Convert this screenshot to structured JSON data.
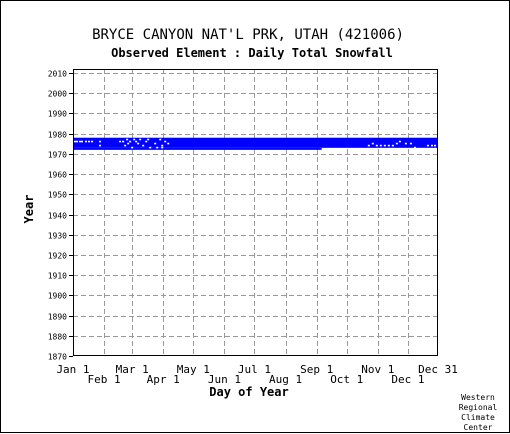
{
  "chart_data": {
    "type": "heatmap",
    "title": "BRYCE CANYON NAT'L PRK, UTAH   (421006)",
    "subtitle": "Observed Element : Daily Total Snowfall",
    "xlabel": "Day of Year",
    "ylabel": "Year",
    "credit": [
      "Western",
      "Regional",
      "Climate",
      "Center"
    ],
    "x_domain": [
      1,
      365
    ],
    "y_domain": [
      1870,
      2012
    ],
    "grid": true,
    "top_tick_labels": [
      {
        "day": 1,
        "label": "Jan 1"
      },
      {
        "day": 60,
        "label": "Mar 1"
      },
      {
        "day": 121,
        "label": "May 1"
      },
      {
        "day": 182,
        "label": "Jul 1"
      },
      {
        "day": 244,
        "label": "Sep 1"
      },
      {
        "day": 305,
        "label": "Nov 1"
      },
      {
        "day": 365,
        "label": "Dec 31"
      }
    ],
    "bottom_tick_labels": [
      {
        "day": 32,
        "label": "Feb 1"
      },
      {
        "day": 91,
        "label": "Apr 1"
      },
      {
        "day": 152,
        "label": "Jun 1"
      },
      {
        "day": 213,
        "label": "Aug 1"
      },
      {
        "day": 274,
        "label": "Oct 1"
      },
      {
        "day": 335,
        "label": "Dec 1"
      }
    ],
    "gridline_days": [
      32,
      60,
      91,
      121,
      152,
      182,
      213,
      244,
      274,
      305,
      335
    ],
    "y_ticks": [
      1870,
      1880,
      1890,
      1900,
      1910,
      1920,
      1930,
      1940,
      1950,
      1960,
      1970,
      1980,
      1990,
      2000,
      2010
    ],
    "data_color": "#0000ff",
    "data_blocks": [
      {
        "day_start": 1,
        "day_end": 365,
        "year_start": 1973,
        "year_end": 1978
      },
      {
        "day_start": 1,
        "day_end": 249,
        "year_start": 1972,
        "year_end": 1973
      }
    ],
    "missing_marks": [
      {
        "day": 3,
        "year": 1976
      },
      {
        "day": 5,
        "year": 1976
      },
      {
        "day": 8,
        "year": 1976
      },
      {
        "day": 10,
        "year": 1976
      },
      {
        "day": 14,
        "year": 1976
      },
      {
        "day": 17,
        "year": 1976
      },
      {
        "day": 20,
        "year": 1976
      },
      {
        "day": 28,
        "year": 1976
      },
      {
        "day": 28,
        "year": 1974
      },
      {
        "day": 48,
        "year": 1976
      },
      {
        "day": 51,
        "year": 1976
      },
      {
        "day": 53,
        "year": 1974
      },
      {
        "day": 55,
        "year": 1977
      },
      {
        "day": 56,
        "year": 1975
      },
      {
        "day": 58,
        "year": 1976
      },
      {
        "day": 60,
        "year": 1973
      },
      {
        "day": 62,
        "year": 1977
      },
      {
        "day": 64,
        "year": 1976
      },
      {
        "day": 66,
        "year": 1975
      },
      {
        "day": 68,
        "year": 1977
      },
      {
        "day": 71,
        "year": 1974
      },
      {
        "day": 74,
        "year": 1976
      },
      {
        "day": 76,
        "year": 1977
      },
      {
        "day": 78,
        "year": 1973
      },
      {
        "day": 83,
        "year": 1975
      },
      {
        "day": 85,
        "year": 1973
      },
      {
        "day": 88,
        "year": 1977
      },
      {
        "day": 90,
        "year": 1974
      },
      {
        "day": 93,
        "year": 1976
      },
      {
        "day": 96,
        "year": 1975
      },
      {
        "day": 90,
        "year": 1973
      },
      {
        "day": 296,
        "year": 1974
      },
      {
        "day": 300,
        "year": 1975
      },
      {
        "day": 304,
        "year": 1974
      },
      {
        "day": 308,
        "year": 1974
      },
      {
        "day": 312,
        "year": 1974
      },
      {
        "day": 316,
        "year": 1974
      },
      {
        "day": 320,
        "year": 1974
      },
      {
        "day": 324,
        "year": 1975
      },
      {
        "day": 327,
        "year": 1976
      },
      {
        "day": 333,
        "year": 1975
      },
      {
        "day": 338,
        "year": 1975
      },
      {
        "day": 342,
        "year": 1973
      },
      {
        "day": 355,
        "year": 1974
      },
      {
        "day": 359,
        "year": 1974
      },
      {
        "day": 362,
        "year": 1974
      }
    ]
  }
}
